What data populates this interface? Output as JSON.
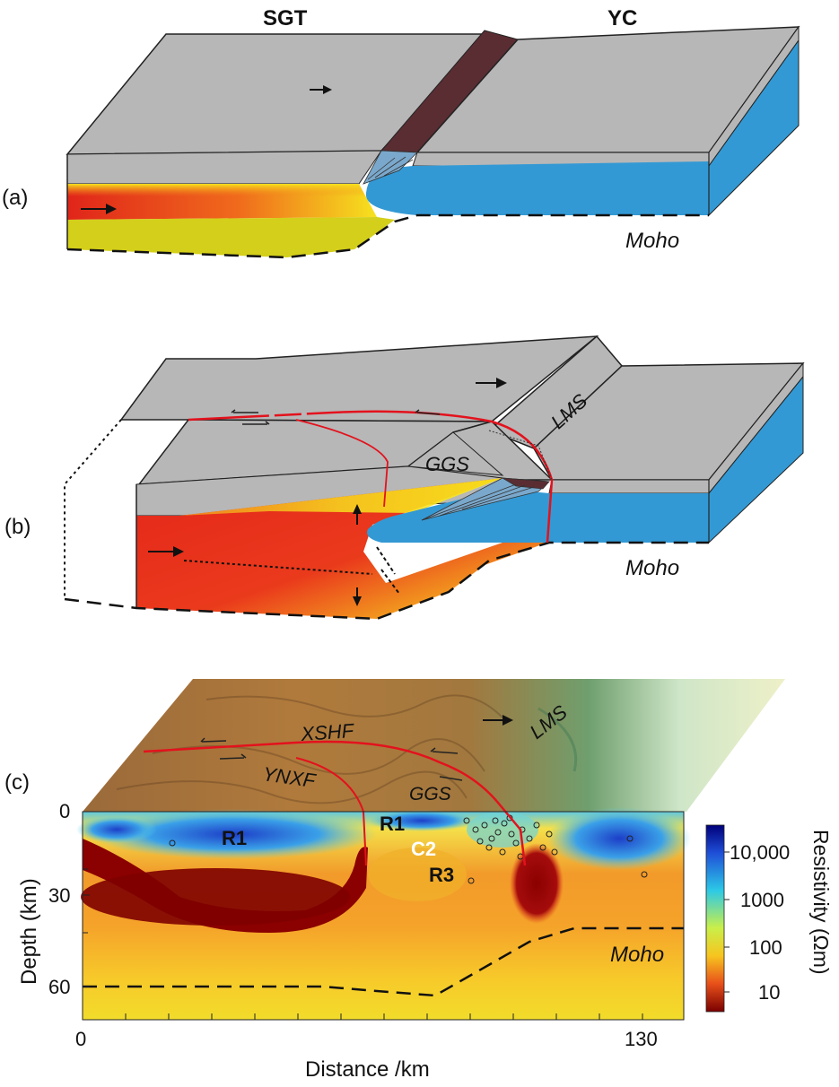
{
  "panel_a": {
    "label": "(a)",
    "left_title": "SGT",
    "right_title": "YC",
    "moho": "Moho"
  },
  "panel_b": {
    "label": "(b)",
    "moho": "Moho",
    "ggs": "GGS",
    "lms": "LMS"
  },
  "panel_c": {
    "label": "(c)",
    "faults": [
      "XSHF",
      "YNXF",
      "GGS",
      "LMS"
    ],
    "anomalies": {
      "r1_left": "R1",
      "r1_right": "R1",
      "c2": "C2",
      "r3": "R3"
    },
    "moho": "Moho",
    "y_axis_label": "Depth (km)",
    "y_ticks": [
      "0",
      "30",
      "60"
    ],
    "x_axis_label": "Distance /km",
    "x_ticks": [
      "0",
      "130"
    ],
    "colorbar_label": "Resistivity (Ωm)",
    "colorbar_ticks": [
      "10,000",
      "1000",
      "100",
      "10"
    ]
  },
  "colors": {
    "crust_grey": "#b7b7b7",
    "yc_blue": "#3399d4",
    "lower_yellow": "#d4cf1a",
    "hot_red": "#e0251a",
    "fault_brown": "#5a2d32",
    "fault_red": "#e3121d"
  }
}
